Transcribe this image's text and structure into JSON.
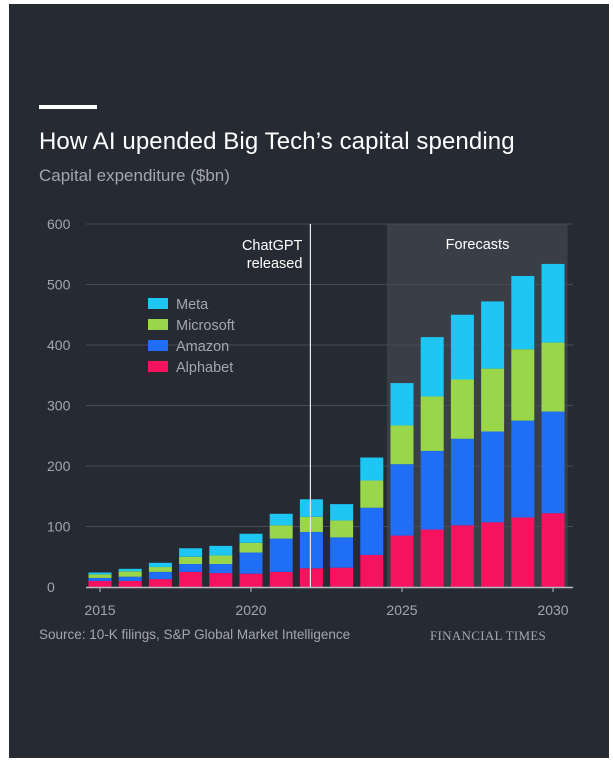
{
  "header": {
    "title": "How AI upended Big Tech’s capital spending",
    "subtitle": "Capital expenditure ($bn)"
  },
  "footer": {
    "source": "Source: 10-K filings, S&P Global Market Intelligence",
    "brand": "FINANCIAL TIMES"
  },
  "colors": {
    "background": "#262a33",
    "Meta": "#1ec6f4",
    "Microsoft": "#9ad64a",
    "Amazon": "#1f6ef5",
    "Alphabet": "#f5125f",
    "forecast_band": "#3a3e47"
  },
  "chart_data": {
    "type": "bar",
    "stacked": true,
    "title": "How AI upended Big Tech’s capital spending",
    "ylabel": "Capital expenditure ($bn)",
    "ylim": [
      0,
      600
    ],
    "yticks": [
      0,
      100,
      200,
      300,
      400,
      500,
      600
    ],
    "xticks": [
      2015,
      2020,
      2025,
      2030
    ],
    "grid": true,
    "legend": "upper-left",
    "x": [
      2015,
      2016,
      2017,
      2018,
      2019,
      2020,
      2021,
      2022,
      2023,
      2024,
      2025,
      2026,
      2027,
      2028,
      2029,
      2030
    ],
    "series": [
      {
        "name": "Alphabet",
        "values": [
          10,
          10,
          13,
          25,
          23,
          22,
          25,
          31,
          32,
          53,
          85,
          95,
          102,
          107,
          115,
          122
        ]
      },
      {
        "name": "Amazon",
        "values": [
          5,
          7,
          12,
          13,
          15,
          35,
          55,
          60,
          50,
          78,
          118,
          130,
          143,
          150,
          160,
          168
        ]
      },
      {
        "name": "Microsoft",
        "values": [
          6,
          9,
          8,
          12,
          14,
          16,
          22,
          25,
          28,
          45,
          64,
          90,
          98,
          104,
          118,
          114
        ]
      },
      {
        "name": "Meta",
        "values": [
          3,
          4,
          7,
          14,
          16,
          15,
          19,
          29,
          27,
          38,
          70,
          98,
          107,
          111,
          121,
          130
        ]
      }
    ],
    "annotations": [
      {
        "text_lines": [
          "ChatGPT",
          "released"
        ],
        "x": 2022
      },
      {
        "text": "Forecasts",
        "x_range": [
          2024.5,
          2030.5
        ]
      }
    ]
  }
}
